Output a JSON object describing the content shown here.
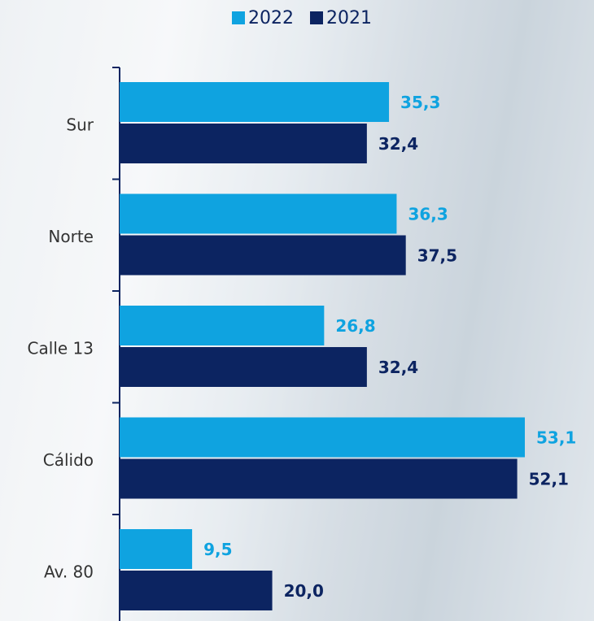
{
  "chart_data": {
    "type": "bar",
    "orientation": "horizontal",
    "categories": [
      "Sur",
      "Norte",
      "Calle 13",
      "Cálido",
      "Av. 80"
    ],
    "series": [
      {
        "name": "2022",
        "color": "#0fa3e0",
        "values": [
          35.3,
          36.3,
          26.8,
          53.1,
          9.5
        ],
        "value_labels": [
          "35,3",
          "36,3",
          "26,8",
          "53,1",
          "9,5"
        ]
      },
      {
        "name": "2021",
        "color": "#0c2461",
        "values": [
          32.4,
          37.5,
          32.4,
          52.1,
          20.0
        ],
        "value_labels": [
          "32,4",
          "37,5",
          "32,4",
          "52,1",
          "20,0"
        ]
      }
    ],
    "legend": "top"
  }
}
